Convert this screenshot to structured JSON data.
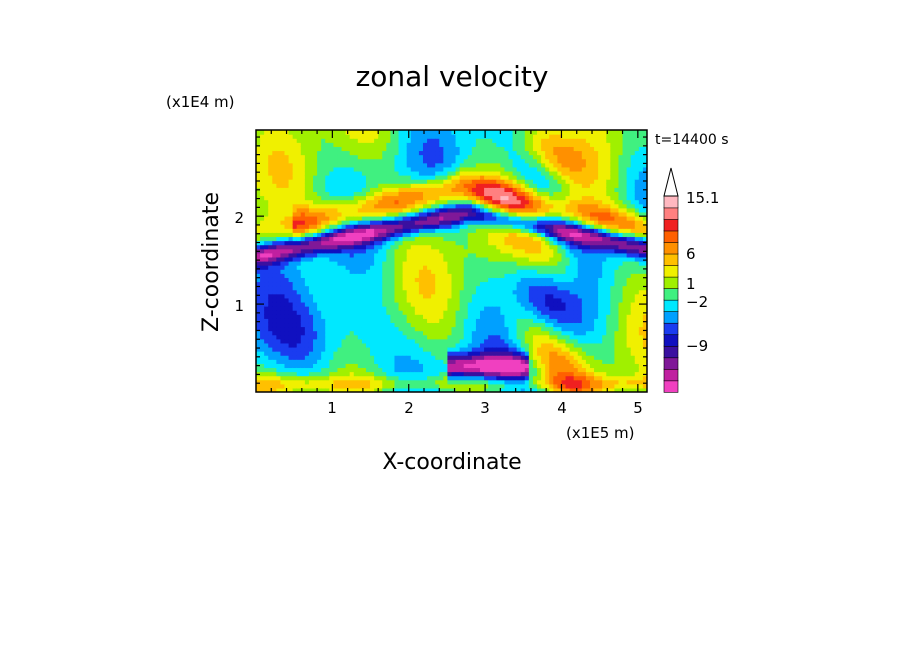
{
  "chart_data": {
    "type": "heatmap",
    "title": "zonal velocity",
    "xlabel": "X-coordinate",
    "ylabel": "Z-coordinate",
    "x_unit": "(x1E5 m)",
    "y_unit": "(x1E4 m)",
    "time_label": "t=14400 s",
    "xlim": [
      0,
      5.12
    ],
    "ylim": [
      0,
      2.98
    ],
    "x_ticks": [
      1,
      2,
      3,
      4,
      5
    ],
    "y_ticks": [
      1,
      2
    ],
    "colorbar": {
      "colors": [
        "#f040c0",
        "#c020a0",
        "#801898",
        "#3a10a0",
        "#1010c0",
        "#1a3cf0",
        "#00a0ff",
        "#00e8ff",
        "#40f080",
        "#a0f000",
        "#f0f000",
        "#ffc000",
        "#ff9000",
        "#ff6000",
        "#f02020",
        "#ff8080",
        "#ffb8c0"
      ],
      "tick_labels": [
        "15.1",
        "6",
        "1",
        "-2",
        "-9"
      ],
      "tick_values": [
        15.1,
        6,
        1,
        -2,
        -9
      ],
      "extend_top": true
    },
    "velocity_range": [
      -15,
      15.1
    ]
  }
}
